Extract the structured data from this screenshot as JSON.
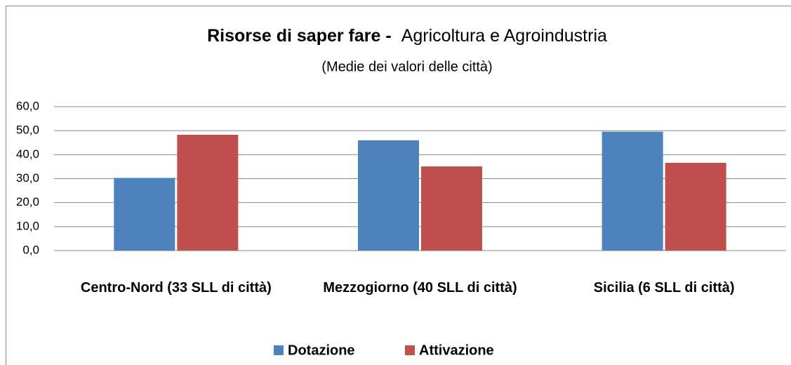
{
  "chart_data": {
    "type": "bar",
    "title": "Risorse di saper fare -",
    "title_detail": "Agricoltura e Agroindustria",
    "subtitle": "(Medie dei valori delle città)",
    "categories": [
      "Centro-Nord (33 SLL di città)",
      "Mezzogiorno (40 SLL di città)",
      "Sicilia (6 SLL di città)"
    ],
    "series": [
      {
        "name": "Dotazione",
        "color": "#4f81bd",
        "values": [
          30.3,
          46.0,
          49.6
        ]
      },
      {
        "name": "Attivazione",
        "color": "#c0504d",
        "values": [
          48.3,
          35.1,
          36.6
        ]
      }
    ],
    "ylim": [
      0,
      60
    ],
    "yticks": [
      {
        "value": 0,
        "label": "0,0"
      },
      {
        "value": 10,
        "label": "10,0"
      },
      {
        "value": 20,
        "label": "20,0"
      },
      {
        "value": 30,
        "label": "30,0"
      },
      {
        "value": 40,
        "label": "40,0"
      },
      {
        "value": 50,
        "label": "50,0"
      },
      {
        "value": 60,
        "label": "60,0"
      }
    ],
    "grid": true,
    "legend": "bottom"
  }
}
